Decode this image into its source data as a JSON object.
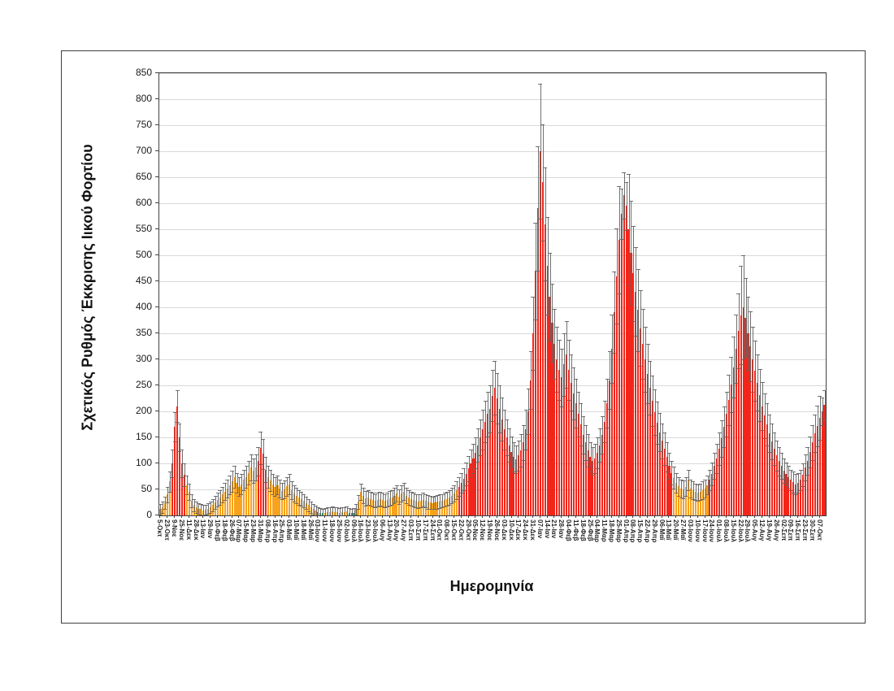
{
  "figure": {
    "background": "#ffffff",
    "border_color": "#3f3f3f"
  },
  "chart_data": {
    "type": "bar",
    "title": "",
    "xlabel": "Ημερομηνία",
    "ylabel": "Σχετικός Ρυθμός Έκκρισης Ιικού Φορτίου",
    "ylim": [
      0,
      850
    ],
    "y_tick_step": 50,
    "grid": "horizontal-gridlines-every-50",
    "legend": "none",
    "error_bars": "gray, symmetric, with caps",
    "x_tick_every_n_bars": 3,
    "x_tick_labels": [
      "5-Οκτ",
      "23-Οκτ",
      "9-Νοε",
      "25-Νοε",
      "11-Δεκ",
      "28-Δεκ",
      "13-Ιαν",
      "29-Ιαν",
      "10-Φεβ",
      "18-Φεβ",
      "26-Φεβ",
      "07-Μαρ",
      "15-Μαρ",
      "23-Μαρ",
      "31-Μαρ",
      "08-Απρ",
      "16-Απρ",
      "25-Απρ",
      "03-Μαϊ",
      "10-Μαϊ",
      "18-Μαϊ",
      "26-Μαϊ",
      "03-Ιουν",
      "11-Ιουν",
      "18-Ιουν",
      "25-Ιουν",
      "02-Ιουλ",
      "09-Ιουλ",
      "16-Ιουλ",
      "23-Ιουλ",
      "30-Ιουλ",
      "06-Αυγ",
      "13-Αυγ",
      "20-Αυγ",
      "27-Αυγ",
      "03-Σεπ",
      "10-Σεπ",
      "17-Σεπ",
      "24-Σεπ",
      "01-Οκτ",
      "08-Οκτ",
      "15-Οκτ",
      "22-Οκτ",
      "29-Οκτ",
      "05-Νοε",
      "12-Νοε",
      "19-Νοε",
      "26-Νοε",
      "03-Δεκ",
      "10-Δεκ",
      "17-Δεκ",
      "24-Δεκ",
      "31-Δεκ",
      "07-Ιαν",
      "14-Ιαν",
      "21-Ιαν",
      "28-Ιαν",
      "04-Φεβ",
      "11-Φεβ",
      "18-Φεβ",
      "25-Φεβ",
      "04-Μαρ",
      "11-Μαρ",
      "18-Μαρ",
      "25-Μαρ",
      "01-Απρ",
      "08-Απρ",
      "15-Απρ",
      "22-Απρ",
      "29-Απρ",
      "06-Μαϊ",
      "13-Μαϊ",
      "20-Μαϊ",
      "27-Μαϊ",
      "03-Ιουν",
      "10-Ιουν",
      "17-Ιουν",
      "24-Ιουν",
      "01-Ιουλ",
      "08-Ιουλ",
      "15-Ιουλ",
      "22-Ιουλ",
      "29-Ιουλ",
      "05-Αυγ",
      "12-Αυγ",
      "19-Αυγ",
      "26-Αυγ",
      "02-Σεπ",
      "09-Σεπ",
      "16-Σεπ",
      "23-Σεπ",
      "30-Σεπ",
      "07-Οκτ"
    ],
    "values": [
      12,
      16,
      24,
      40,
      65,
      100,
      170,
      210,
      150,
      100,
      78,
      58,
      45,
      28,
      20,
      15,
      13,
      12,
      10,
      11,
      13,
      16,
      20,
      25,
      30,
      34,
      40,
      46,
      52,
      58,
      66,
      74,
      62,
      55,
      60,
      68,
      74,
      82,
      92,
      86,
      92,
      104,
      130,
      118,
      88,
      74,
      67,
      60,
      55,
      58,
      52,
      47,
      50,
      56,
      60,
      48,
      42,
      38,
      35,
      32,
      28,
      24,
      20,
      16,
      12,
      9,
      7,
      5,
      4,
      5,
      6,
      7,
      8,
      7,
      6,
      5,
      6,
      7,
      8,
      5,
      4,
      5,
      12,
      26,
      45,
      38,
      33,
      35,
      32,
      30,
      28,
      30,
      32,
      30,
      28,
      30,
      33,
      35,
      38,
      42,
      36,
      42,
      46,
      38,
      34,
      32,
      30,
      28,
      27,
      28,
      30,
      28,
      26,
      25,
      24,
      25,
      26,
      27,
      28,
      30,
      32,
      35,
      38,
      42,
      48,
      55,
      62,
      70,
      80,
      90,
      100,
      110,
      120,
      135,
      150,
      165,
      180,
      195,
      205,
      230,
      245,
      225,
      205,
      185,
      165,
      150,
      135,
      122,
      112,
      108,
      115,
      125,
      140,
      165,
      200,
      260,
      350,
      470,
      590,
      700,
      640,
      560,
      480,
      420,
      370,
      330,
      300,
      280,
      265,
      290,
      310,
      280,
      255,
      235,
      215,
      195,
      175,
      155,
      140,
      125,
      112,
      105,
      110,
      120,
      135,
      155,
      180,
      215,
      260,
      320,
      390,
      460,
      530,
      580,
      615,
      595,
      550,
      505,
      465,
      430,
      395,
      360,
      330,
      300,
      272,
      245,
      220,
      198,
      178,
      160,
      143,
      128,
      112,
      95,
      82,
      72,
      62,
      56,
      52,
      50,
      55,
      68,
      52,
      48,
      45,
      44,
      45,
      48,
      52,
      58,
      68,
      80,
      95,
      110,
      128,
      148,
      170,
      195,
      222,
      252,
      285,
      320,
      355,
      385,
      400,
      380,
      350,
      325,
      300,
      278,
      255,
      232,
      210,
      192,
      175,
      158,
      142,
      128,
      115,
      104,
      95,
      86,
      80,
      74,
      68,
      64,
      60,
      62,
      68,
      78,
      92,
      105,
      122,
      140,
      158,
      172,
      188,
      200,
      212
    ],
    "error_model": {
      "base": 8,
      "ratio": 0.18,
      "overrides": {
        "6": 28,
        "7": 30,
        "8": 26,
        "158": 120,
        "159": 130,
        "160": 112,
        "193": 48,
        "194": 45,
        "195": 46,
        "243": 95,
        "244": 100,
        "277": 26,
        "278": 28
      }
    },
    "bar_colors": {
      "orange": "#f9a21b",
      "red": "#f3251a",
      "teal": "#1e9e7e"
    },
    "color_segments": [
      {
        "from": 0,
        "to": 4,
        "color": "orange"
      },
      {
        "from": 5,
        "to": 10,
        "color": "red"
      },
      {
        "from": 11,
        "to": 40,
        "color": "orange"
      },
      {
        "from": 41,
        "to": 44,
        "color": "red"
      },
      {
        "from": 45,
        "to": 65,
        "color": "orange"
      },
      {
        "from": 66,
        "to": 68,
        "color": "teal"
      },
      {
        "from": 69,
        "to": 78,
        "color": "orange"
      },
      {
        "from": 79,
        "to": 81,
        "color": "teal"
      },
      {
        "from": 82,
        "to": 124,
        "color": "orange"
      },
      {
        "from": 125,
        "to": 214,
        "color": "red"
      },
      {
        "from": 215,
        "to": 229,
        "color": "orange"
      },
      {
        "from": 230,
        "to": 278,
        "color": "red"
      }
    ],
    "error_bar_color": "rgba(100,100,100,0.92)",
    "gridline_color": "#d9d9d9",
    "axis_color": "#404040"
  }
}
